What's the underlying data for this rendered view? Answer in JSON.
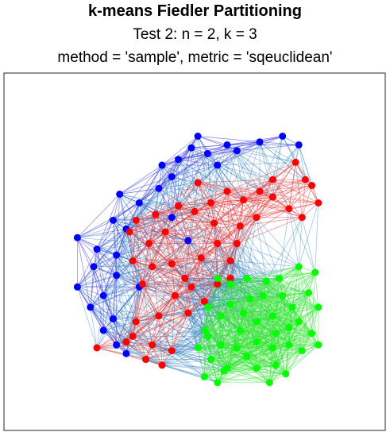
{
  "titles": {
    "title": "k-means Fiedler Partitioning",
    "subtitle": "Test 2: n = 2, k = 3",
    "subtitle2": "method = 'sample', metric = 'sqeuclidean'"
  },
  "chart_data": {
    "type": "scatter",
    "title": "k-means Fiedler Partitioning",
    "subtitle": [
      "Test 2: n = 2, k = 3",
      "method = 'sample', metric = 'sqeuclidean'"
    ],
    "xlim": [
      0,
      100
    ],
    "ylim": [
      0,
      100
    ],
    "axes_visible": false,
    "grid": false,
    "edge_colors": {
      "within_blue": "#3b3bd8",
      "within_red": "#e83a3a",
      "within_green": "#35e335",
      "between_clusters": "#2f7fbf"
    },
    "series": [
      {
        "color": "#0000ff",
        "points": [
          [
            51,
            90
          ],
          [
            60,
            87
          ],
          [
            63,
            85
          ],
          [
            70,
            88
          ],
          [
            77,
            90
          ],
          [
            82,
            87
          ],
          [
            40,
            80
          ],
          [
            45,
            82
          ],
          [
            49,
            86
          ],
          [
            54,
            84
          ],
          [
            57,
            80
          ],
          [
            39,
            72
          ],
          [
            43,
            76
          ],
          [
            27,
            70
          ],
          [
            33,
            67
          ],
          [
            25,
            61
          ],
          [
            29,
            58
          ],
          [
            14,
            55
          ],
          [
            20,
            51
          ],
          [
            26,
            49
          ],
          [
            19,
            45
          ],
          [
            26,
            42
          ],
          [
            33,
            38
          ],
          [
            14,
            38
          ],
          [
            22,
            35
          ],
          [
            18,
            31
          ],
          [
            25,
            27
          ],
          [
            22,
            23
          ],
          [
            26,
            18
          ],
          [
            29,
            15
          ],
          [
            43,
            62
          ],
          [
            48,
            54
          ]
        ]
      },
      {
        "color": "#ff0000",
        "points": [
          [
            81,
            81
          ],
          [
            84,
            75
          ],
          [
            86,
            73
          ],
          [
            88,
            67
          ],
          [
            74,
            75
          ],
          [
            70,
            71
          ],
          [
            65,
            68
          ],
          [
            60,
            71
          ],
          [
            55,
            67
          ],
          [
            51,
            74
          ],
          [
            50,
            64
          ],
          [
            56,
            60
          ],
          [
            64,
            59
          ],
          [
            69,
            62
          ],
          [
            74,
            69
          ],
          [
            79,
            65
          ],
          [
            83,
            62
          ],
          [
            45,
            66
          ],
          [
            38,
            63
          ],
          [
            32,
            61
          ],
          [
            41,
            57
          ],
          [
            36,
            53
          ],
          [
            31,
            47
          ],
          [
            37,
            45
          ],
          [
            34,
            39
          ],
          [
            43,
            46
          ],
          [
            47,
            41
          ],
          [
            44,
            35
          ],
          [
            39,
            28
          ],
          [
            32,
            26
          ],
          [
            31,
            21
          ],
          [
            29,
            19
          ],
          [
            35,
            13
          ],
          [
            40,
            11
          ],
          [
            43,
            16
          ],
          [
            37,
            18
          ],
          [
            57,
            53
          ],
          [
            61,
            47
          ],
          [
            52,
            48
          ],
          [
            48,
            29
          ],
          [
            53,
            33
          ],
          [
            57,
            39
          ],
          [
            49,
            38
          ],
          [
            20,
            17
          ],
          [
            30,
            57
          ],
          [
            63,
            53
          ],
          [
            61,
            41
          ]
        ]
      },
      {
        "color": "#00ff00",
        "points": [
          [
            82,
            45
          ],
          [
            87,
            43
          ],
          [
            85,
            36
          ],
          [
            88,
            31
          ],
          [
            80,
            31
          ],
          [
            74,
            28
          ],
          [
            66,
            41
          ],
          [
            61,
            39
          ],
          [
            57,
            41
          ],
          [
            61,
            32
          ],
          [
            67,
            34
          ],
          [
            72,
            40
          ],
          [
            77,
            35
          ],
          [
            82,
            26
          ],
          [
            86,
            22
          ],
          [
            88,
            18
          ],
          [
            83,
            16
          ],
          [
            79,
            18
          ],
          [
            74,
            17
          ],
          [
            69,
            19
          ],
          [
            64,
            23
          ],
          [
            58,
            28
          ],
          [
            54,
            31
          ],
          [
            53,
            23
          ],
          [
            51,
            17
          ],
          [
            55,
            13
          ],
          [
            59,
            9
          ],
          [
            53,
            7
          ],
          [
            57,
            5
          ],
          [
            60,
            10
          ],
          [
            66,
            14
          ],
          [
            69,
            10
          ],
          [
            73,
            5
          ],
          [
            75,
            11
          ],
          [
            78,
            8
          ],
          [
            69,
            26
          ],
          [
            75,
            22
          ],
          [
            63,
            17
          ],
          [
            58,
            18
          ],
          [
            76,
            41
          ],
          [
            71,
            35
          ],
          [
            65,
            29
          ],
          [
            79,
            24
          ],
          [
            54,
            21
          ]
        ]
      }
    ]
  }
}
